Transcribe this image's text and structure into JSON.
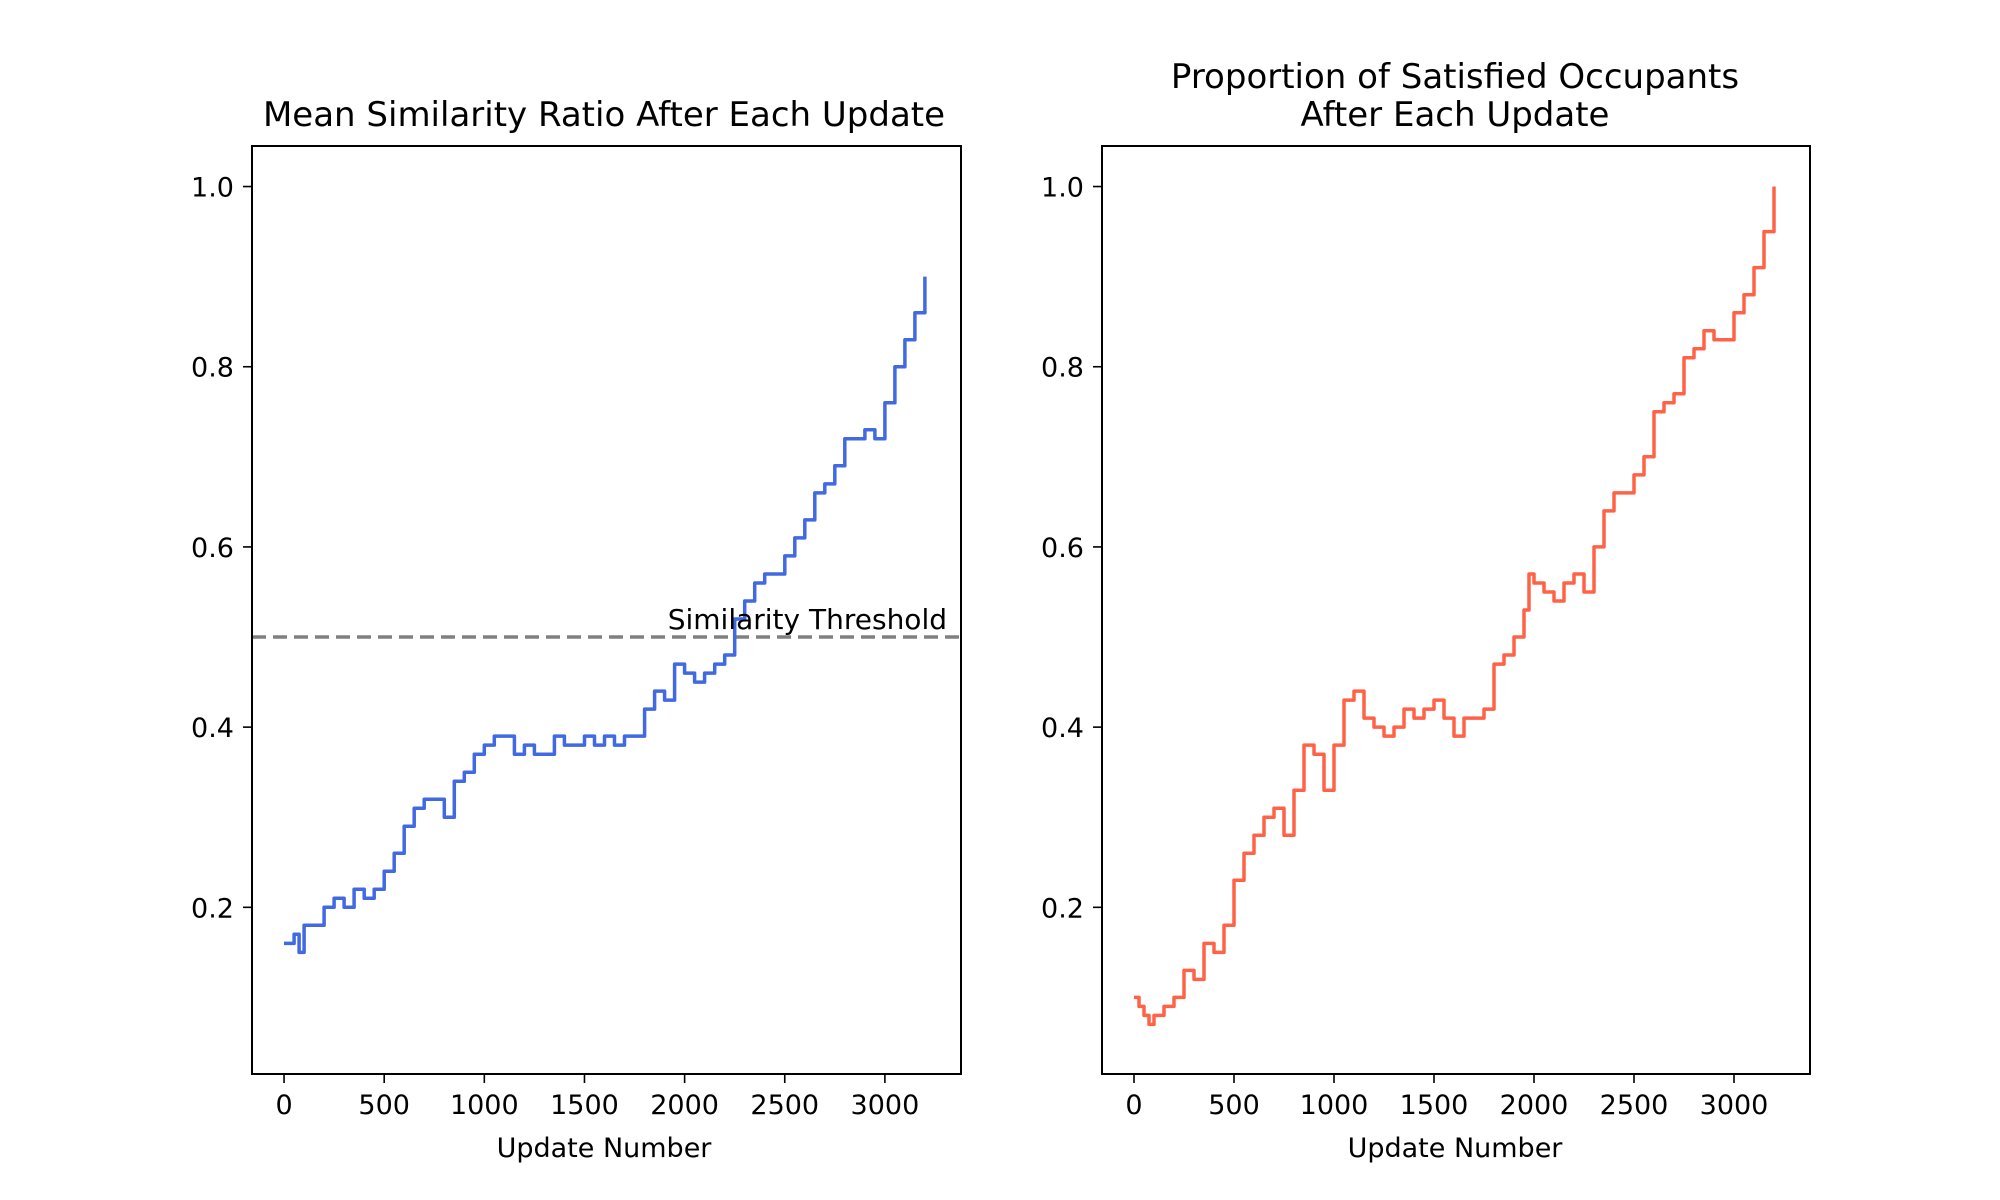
{
  "chart_data": [
    {
      "type": "line",
      "title": "Mean Similarity Ratio After Each Update",
      "xlabel": "Update Number",
      "ylabel": "",
      "xlim": [
        -160,
        3380
      ],
      "ylim": [
        0.015,
        1.045
      ],
      "xticks": [
        0,
        500,
        1000,
        1500,
        2000,
        2500,
        3000
      ],
      "yticks": [
        0.2,
        0.4,
        0.6,
        0.8,
        1.0
      ],
      "ytick_labels": [
        "0.2",
        "0.4",
        "0.6",
        "0.8",
        "1.0"
      ],
      "color": "#4169e1",
      "threshold": {
        "y": 0.5,
        "label": "Similarity Threshold",
        "color": "#808080"
      },
      "series": [
        {
          "x": [
            0,
            50,
            75,
            100,
            150,
            200,
            250,
            300,
            350,
            400,
            450,
            500,
            550,
            600,
            650,
            700,
            750,
            800,
            850,
            900,
            950,
            1000,
            1050,
            1100,
            1150,
            1200,
            1250,
            1300,
            1350,
            1400,
            1450,
            1500,
            1550,
            1600,
            1650,
            1700,
            1750,
            1800,
            1850,
            1900,
            1950,
            2000,
            2050,
            2100,
            2150,
            2200,
            2250,
            2300,
            2350,
            2400,
            2450,
            2500,
            2550,
            2600,
            2650,
            2700,
            2750,
            2800,
            2850,
            2900,
            2950,
            3000,
            3050,
            3100,
            3150,
            3200
          ],
          "y": [
            0.16,
            0.17,
            0.15,
            0.18,
            0.18,
            0.2,
            0.21,
            0.2,
            0.22,
            0.21,
            0.22,
            0.24,
            0.26,
            0.29,
            0.31,
            0.32,
            0.32,
            0.3,
            0.34,
            0.35,
            0.37,
            0.38,
            0.39,
            0.39,
            0.37,
            0.38,
            0.37,
            0.37,
            0.39,
            0.38,
            0.38,
            0.39,
            0.38,
            0.39,
            0.38,
            0.39,
            0.39,
            0.42,
            0.44,
            0.43,
            0.47,
            0.46,
            0.45,
            0.46,
            0.47,
            0.48,
            0.52,
            0.54,
            0.56,
            0.57,
            0.57,
            0.59,
            0.61,
            0.63,
            0.66,
            0.67,
            0.69,
            0.72,
            0.72,
            0.73,
            0.72,
            0.76,
            0.8,
            0.83,
            0.86,
            0.9
          ]
        }
      ]
    },
    {
      "type": "line",
      "title": "Proportion of Satisfied Occupants",
      "title_line2": "After Each Update",
      "xlabel": "Update Number",
      "ylabel": "",
      "xlim": [
        -160,
        3380
      ],
      "ylim": [
        0.015,
        1.045
      ],
      "xticks": [
        0,
        500,
        1000,
        1500,
        2000,
        2500,
        3000
      ],
      "yticks": [
        0.2,
        0.4,
        0.6,
        0.8,
        1.0
      ],
      "ytick_labels": [
        "0.2",
        "0.4",
        "0.6",
        "0.8",
        "1.0"
      ],
      "color": "#ff6347",
      "series": [
        {
          "x": [
            0,
            25,
            50,
            75,
            100,
            150,
            200,
            250,
            300,
            350,
            400,
            450,
            500,
            550,
            600,
            650,
            700,
            750,
            800,
            850,
            900,
            950,
            1000,
            1050,
            1100,
            1150,
            1200,
            1250,
            1300,
            1350,
            1400,
            1450,
            1500,
            1550,
            1600,
            1650,
            1700,
            1750,
            1800,
            1850,
            1900,
            1950,
            1975,
            2000,
            2050,
            2100,
            2150,
            2200,
            2250,
            2300,
            2350,
            2400,
            2450,
            2500,
            2550,
            2600,
            2650,
            2700,
            2750,
            2800,
            2850,
            2900,
            2950,
            3000,
            3050,
            3100,
            3150,
            3200
          ],
          "y": [
            0.1,
            0.09,
            0.08,
            0.07,
            0.08,
            0.09,
            0.1,
            0.13,
            0.12,
            0.16,
            0.15,
            0.18,
            0.23,
            0.26,
            0.28,
            0.3,
            0.31,
            0.28,
            0.33,
            0.38,
            0.37,
            0.33,
            0.38,
            0.43,
            0.44,
            0.41,
            0.4,
            0.39,
            0.4,
            0.42,
            0.41,
            0.42,
            0.43,
            0.41,
            0.39,
            0.41,
            0.41,
            0.42,
            0.47,
            0.48,
            0.5,
            0.53,
            0.57,
            0.56,
            0.55,
            0.54,
            0.56,
            0.57,
            0.55,
            0.6,
            0.64,
            0.66,
            0.66,
            0.68,
            0.7,
            0.75,
            0.76,
            0.77,
            0.81,
            0.82,
            0.84,
            0.83,
            0.83,
            0.86,
            0.88,
            0.91,
            0.95,
            1.0
          ]
        }
      ]
    }
  ]
}
